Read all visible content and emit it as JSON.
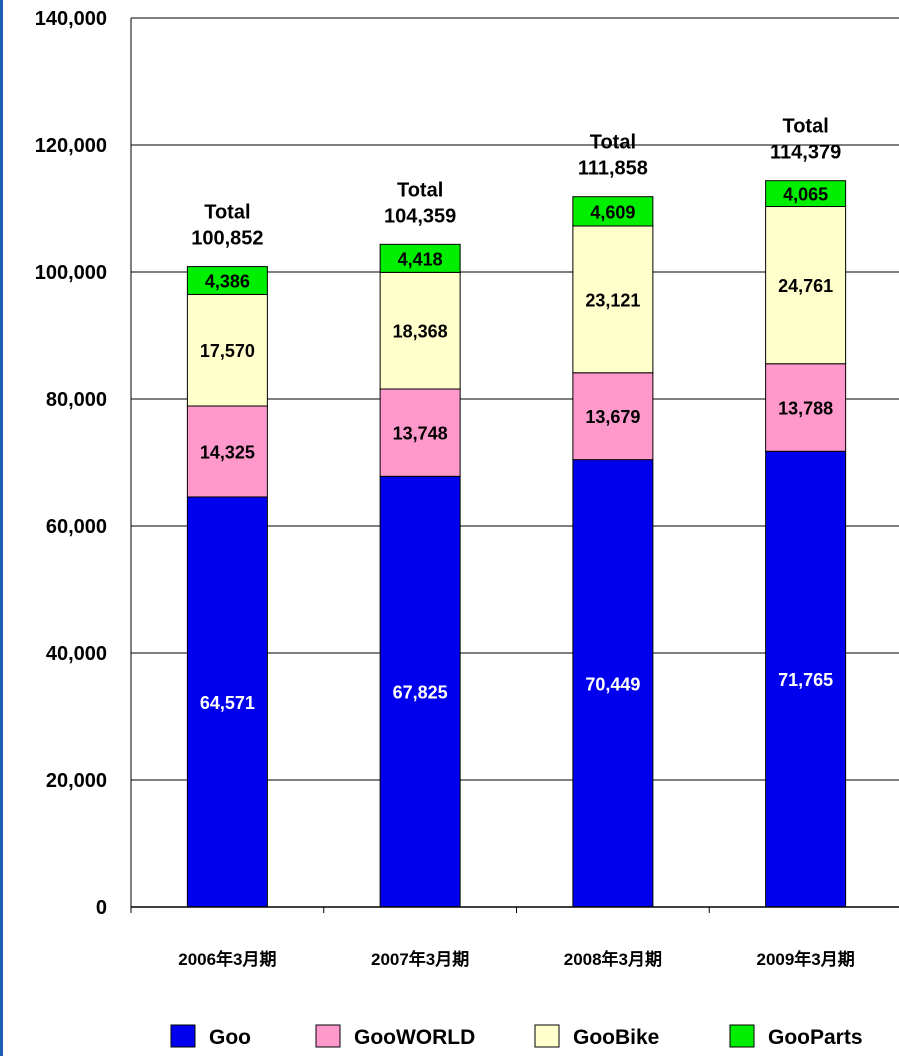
{
  "chart_data": {
    "type": "bar",
    "stacked": true,
    "categories": [
      "2006年3月期",
      "2007年3月期",
      "2008年3月期",
      "2009年3月期"
    ],
    "series": [
      {
        "name": "Goo",
        "values": [
          64571,
          67825,
          70449,
          71765
        ],
        "color": "#0000ee",
        "label_color": "#ffffff"
      },
      {
        "name": "GooWORLD",
        "values": [
          14325,
          13748,
          13679,
          13788
        ],
        "color": "#ff99cc",
        "label_color": "#000000"
      },
      {
        "name": "GooBike",
        "values": [
          17570,
          18368,
          23121,
          24761
        ],
        "color": "#ffffcc",
        "label_color": "#000000"
      },
      {
        "name": "GooParts",
        "values": [
          4386,
          4418,
          4609,
          4065
        ],
        "color": "#00ee00",
        "label_color": "#000000"
      }
    ],
    "segment_labels": [
      [
        "64,571",
        "14,325",
        "17,570",
        "4,386"
      ],
      [
        "67,825",
        "13,748",
        "18,368",
        "4,418"
      ],
      [
        "70,449",
        "13,679",
        "23,121",
        "4,609"
      ],
      [
        "71,765",
        "13,788",
        "24,761",
        "4,065"
      ]
    ],
    "totals": [
      {
        "word": "Total",
        "value": "100,852"
      },
      {
        "word": "Total",
        "value": "104,359"
      },
      {
        "word": "Total",
        "value": "111,858"
      },
      {
        "word": "Total",
        "value": "114,379"
      }
    ],
    "y_ticks": [
      "0",
      "20,000",
      "40,000",
      "60,000",
      "80,000",
      "100,000",
      "120,000",
      "140,000"
    ],
    "ylim": [
      0,
      140000
    ],
    "grid": true,
    "legend_position": "bottom"
  }
}
